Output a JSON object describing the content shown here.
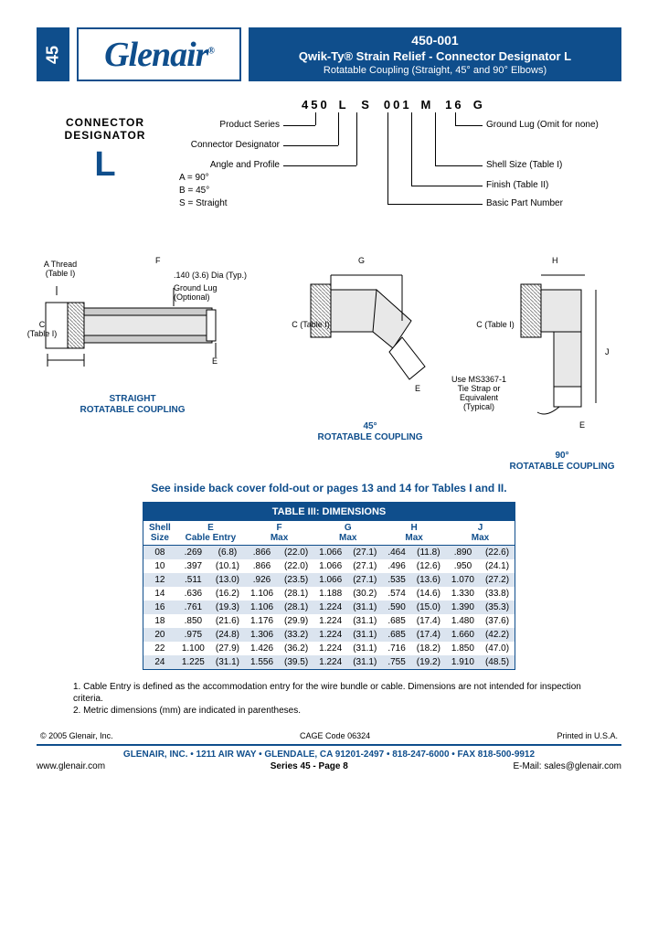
{
  "page_tab": "45",
  "logo": "Glenair",
  "logo_reg": "®",
  "title": {
    "num": "450-001",
    "main": "Qwik-Ty® Strain Relief - Connector Designator L",
    "sub": "Rotatable Coupling (Straight, 45° and 90° Elbows)"
  },
  "designator": {
    "label": "CONNECTOR DESIGNATOR",
    "letter": "L"
  },
  "partcode": {
    "code": [
      "450",
      "L",
      "S",
      "001",
      "M",
      "16",
      "G"
    ],
    "left_labels": {
      "series": "Product Series",
      "designator": "Connector Designator",
      "angle_title": "Angle and Profile",
      "angle_a": "A = 90°",
      "angle_b": "B = 45°",
      "angle_s": "S = Straight"
    },
    "right_labels": {
      "ground": "Ground Lug (Omit for none)",
      "shell": "Shell Size (Table I)",
      "finish": "Finish (Table II)",
      "basic": "Basic Part Number"
    }
  },
  "drawings": {
    "straight": "STRAIGHT\nROTATABLE COUPLING",
    "d45": "45°\nROTATABLE COUPLING",
    "d90": "90°\nROTATABLE COUPLING",
    "athread": "A Thread\n(Table I)",
    "c_table": "C\n(Table I)",
    "c_table2": "C (Table I)",
    "f": "F",
    "e": "E",
    "g": "G",
    "h": "H",
    "j": "J",
    "dia": ".140 (3.6) Dia (Typ.)",
    "groundlug": "Ground Lug\n(Optional)",
    "tiestrap": "Use MS3367-1\nTie Strap or\nEquivalent\n(Typical)"
  },
  "see_inside": "See inside back cover fold-out or pages 13 and 14 for Tables I and II.",
  "table": {
    "title": "TABLE III: DIMENSIONS",
    "headers": {
      "shell": "Shell\nSize",
      "e": "E\nCable Entry",
      "f": "F\nMax",
      "g": "G\nMax",
      "h": "H\nMax",
      "j": "J\nMax"
    },
    "rows": [
      {
        "s": "08",
        "e": ".269",
        "em": "(6.8)",
        "f": ".866",
        "fm": "(22.0)",
        "g": "1.066",
        "gm": "(27.1)",
        "h": ".464",
        "hm": "(11.8)",
        "j": ".890",
        "jm": "(22.6)"
      },
      {
        "s": "10",
        "e": ".397",
        "em": "(10.1)",
        "f": ".866",
        "fm": "(22.0)",
        "g": "1.066",
        "gm": "(27.1)",
        "h": ".496",
        "hm": "(12.6)",
        "j": ".950",
        "jm": "(24.1)"
      },
      {
        "s": "12",
        "e": ".511",
        "em": "(13.0)",
        "f": ".926",
        "fm": "(23.5)",
        "g": "1.066",
        "gm": "(27.1)",
        "h": ".535",
        "hm": "(13.6)",
        "j": "1.070",
        "jm": "(27.2)"
      },
      {
        "s": "14",
        "e": ".636",
        "em": "(16.2)",
        "f": "1.106",
        "fm": "(28.1)",
        "g": "1.188",
        "gm": "(30.2)",
        "h": ".574",
        "hm": "(14.6)",
        "j": "1.330",
        "jm": "(33.8)"
      },
      {
        "s": "16",
        "e": ".761",
        "em": "(19.3)",
        "f": "1.106",
        "fm": "(28.1)",
        "g": "1.224",
        "gm": "(31.1)",
        "h": ".590",
        "hm": "(15.0)",
        "j": "1.390",
        "jm": "(35.3)"
      },
      {
        "s": "18",
        "e": ".850",
        "em": "(21.6)",
        "f": "1.176",
        "fm": "(29.9)",
        "g": "1.224",
        "gm": "(31.1)",
        "h": ".685",
        "hm": "(17.4)",
        "j": "1.480",
        "jm": "(37.6)"
      },
      {
        "s": "20",
        "e": ".975",
        "em": "(24.8)",
        "f": "1.306",
        "fm": "(33.2)",
        "g": "1.224",
        "gm": "(31.1)",
        "h": ".685",
        "hm": "(17.4)",
        "j": "1.660",
        "jm": "(42.2)"
      },
      {
        "s": "22",
        "e": "1.100",
        "em": "(27.9)",
        "f": "1.426",
        "fm": "(36.2)",
        "g": "1.224",
        "gm": "(31.1)",
        "h": ".716",
        "hm": "(18.2)",
        "j": "1.850",
        "jm": "(47.0)"
      },
      {
        "s": "24",
        "e": "1.225",
        "em": "(31.1)",
        "f": "1.556",
        "fm": "(39.5)",
        "g": "1.224",
        "gm": "(31.1)",
        "h": ".755",
        "hm": "(19.2)",
        "j": "1.910",
        "jm": "(48.5)"
      }
    ]
  },
  "notes": {
    "n1": "1. Cable Entry is defined as the accommodation entry for the wire bundle or cable. Dimensions are not intended for inspection criteria.",
    "n2": "2. Metric dimensions (mm) are indicated in parentheses."
  },
  "meta": {
    "copyright": "© 2005 Glenair, Inc.",
    "cage": "CAGE Code 06324",
    "printed": "Printed in U.S.A."
  },
  "footer": {
    "addr": "GLENAIR, INC. • 1211 AIR WAY • GLENDALE, CA 91201-2497 • 818-247-6000 • FAX 818-500-9912",
    "web": "www.glenair.com",
    "series": "Series 45 - Page 8",
    "email": "E-Mail: sales@glenair.com"
  },
  "colors": {
    "brand": "#0f4e8c",
    "alt_row": "#dbe4ef"
  }
}
